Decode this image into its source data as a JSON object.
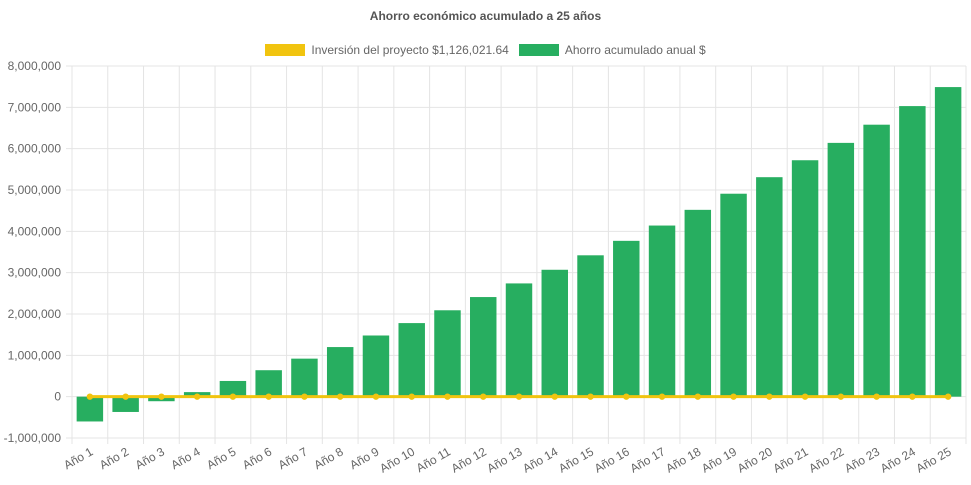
{
  "chart_data": {
    "type": "bar",
    "title": "Ahorro económico acumulado a 25 años",
    "categories": [
      "Año 1",
      "Año 2",
      "Año 3",
      "Año 4",
      "Año 5",
      "Año 6",
      "Año 7",
      "Año 8",
      "Año 9",
      "Año 10",
      "Año 11",
      "Año 12",
      "Año 13",
      "Año 14",
      "Año 15",
      "Año 16",
      "Año 17",
      "Año 18",
      "Año 19",
      "Año 20",
      "Año 21",
      "Año 22",
      "Año 23",
      "Año 24",
      "Año 25"
    ],
    "series": [
      {
        "name": "Inversión del proyecto $1,126,021.64",
        "type": "line",
        "color": "#f1c40f",
        "values": [
          0,
          0,
          0,
          0,
          0,
          0,
          0,
          0,
          0,
          0,
          0,
          0,
          0,
          0,
          0,
          0,
          0,
          0,
          0,
          0,
          0,
          0,
          0,
          0,
          0
        ]
      },
      {
        "name": "Ahorro acumulado anual $",
        "type": "bar",
        "color": "#27ae60",
        "values": [
          -600000,
          -370000,
          -110000,
          110000,
          380000,
          640000,
          920000,
          1200000,
          1480000,
          1780000,
          2090000,
          2410000,
          2740000,
          3070000,
          3420000,
          3770000,
          4140000,
          4520000,
          4910000,
          5310000,
          5720000,
          6140000,
          6580000,
          7030000,
          7490000
        ]
      }
    ],
    "yticks": [
      "8,000,000",
      "7,000,000",
      "6,000,000",
      "5,000,000",
      "4,000,000",
      "3,000,000",
      "2,000,000",
      "1,000,000",
      "0",
      "-1,000,000"
    ],
    "ylim": [
      -1000000,
      8000000
    ],
    "grid": true,
    "legend": "top-center"
  }
}
